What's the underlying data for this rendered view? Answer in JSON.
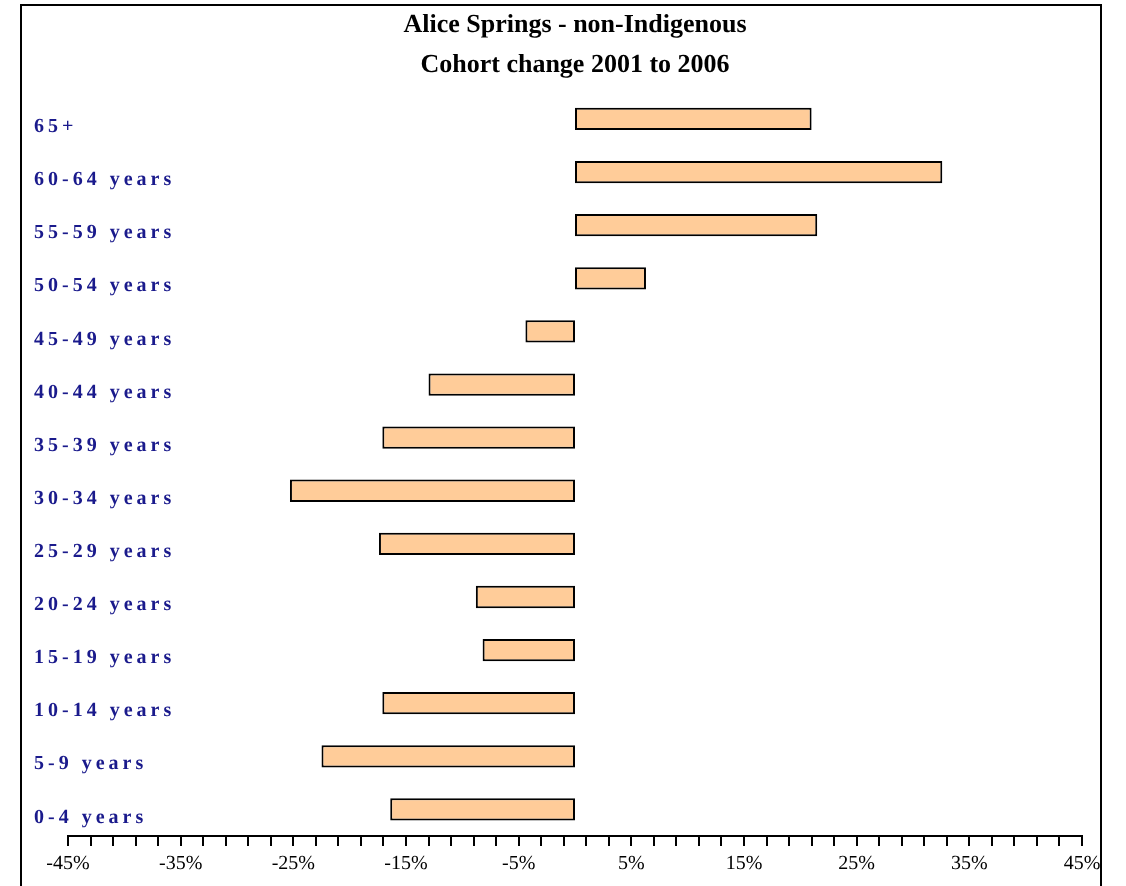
{
  "chart_data": {
    "type": "bar",
    "orientation": "horizontal",
    "title": "Alice Springs - non-Indigenous",
    "subtitle": "Cohort change 2001 to 2006",
    "categories": [
      "65+",
      "60-64 years",
      "55-59 years",
      "50-54 years",
      "45-49 years",
      "40-44 years",
      "35-39 years",
      "30-34 years",
      "25-29 years",
      "20-24 years",
      "15-19 years",
      "10-14 years",
      "5-9 years",
      "0-4 years"
    ],
    "values": [
      21.0,
      32.6,
      21.5,
      6.3,
      -4.4,
      -13.0,
      -17.1,
      -25.3,
      -17.4,
      -8.8,
      -8.2,
      -17.1,
      -22.5,
      -16.4
    ],
    "color": "#ffcc99",
    "xlim": [
      -45,
      45
    ],
    "xticks": [
      {
        "value": -45,
        "label": "-45%"
      },
      {
        "value": -43,
        "label": null
      },
      {
        "value": -41,
        "label": null
      },
      {
        "value": -39,
        "label": null
      },
      {
        "value": -37,
        "label": null
      },
      {
        "value": -35,
        "label": "-35%"
      },
      {
        "value": -33,
        "label": null
      },
      {
        "value": -31,
        "label": null
      },
      {
        "value": -29,
        "label": null
      },
      {
        "value": -27,
        "label": null
      },
      {
        "value": -25,
        "label": "-25%"
      },
      {
        "value": -23,
        "label": null
      },
      {
        "value": -21,
        "label": null
      },
      {
        "value": -19,
        "label": null
      },
      {
        "value": -17,
        "label": null
      },
      {
        "value": -15,
        "label": "-15%"
      },
      {
        "value": -13,
        "label": null
      },
      {
        "value": -11,
        "label": null
      },
      {
        "value": -9,
        "label": null
      },
      {
        "value": -7,
        "label": null
      },
      {
        "value": -5,
        "label": "-5%"
      },
      {
        "value": -3,
        "label": null
      },
      {
        "value": -1,
        "label": null
      },
      {
        "value": 1,
        "label": null
      },
      {
        "value": 3,
        "label": null
      },
      {
        "value": 5,
        "label": "5%"
      },
      {
        "value": 7,
        "label": null
      },
      {
        "value": 9,
        "label": null
      },
      {
        "value": 11,
        "label": null
      },
      {
        "value": 13,
        "label": null
      },
      {
        "value": 15,
        "label": "15%"
      },
      {
        "value": 17,
        "label": null
      },
      {
        "value": 19,
        "label": null
      },
      {
        "value": 21,
        "label": null
      },
      {
        "value": 23,
        "label": null
      },
      {
        "value": 25,
        "label": "25%"
      },
      {
        "value": 27,
        "label": null
      },
      {
        "value": 29,
        "label": null
      },
      {
        "value": 31,
        "label": null
      },
      {
        "value": 33,
        "label": null
      },
      {
        "value": 35,
        "label": "35%"
      },
      {
        "value": 37,
        "label": null
      },
      {
        "value": 39,
        "label": null
      },
      {
        "value": 41,
        "label": null
      },
      {
        "value": 43,
        "label": null
      },
      {
        "value": 45,
        "label": "45%"
      }
    ],
    "grid": false,
    "legend": false
  }
}
